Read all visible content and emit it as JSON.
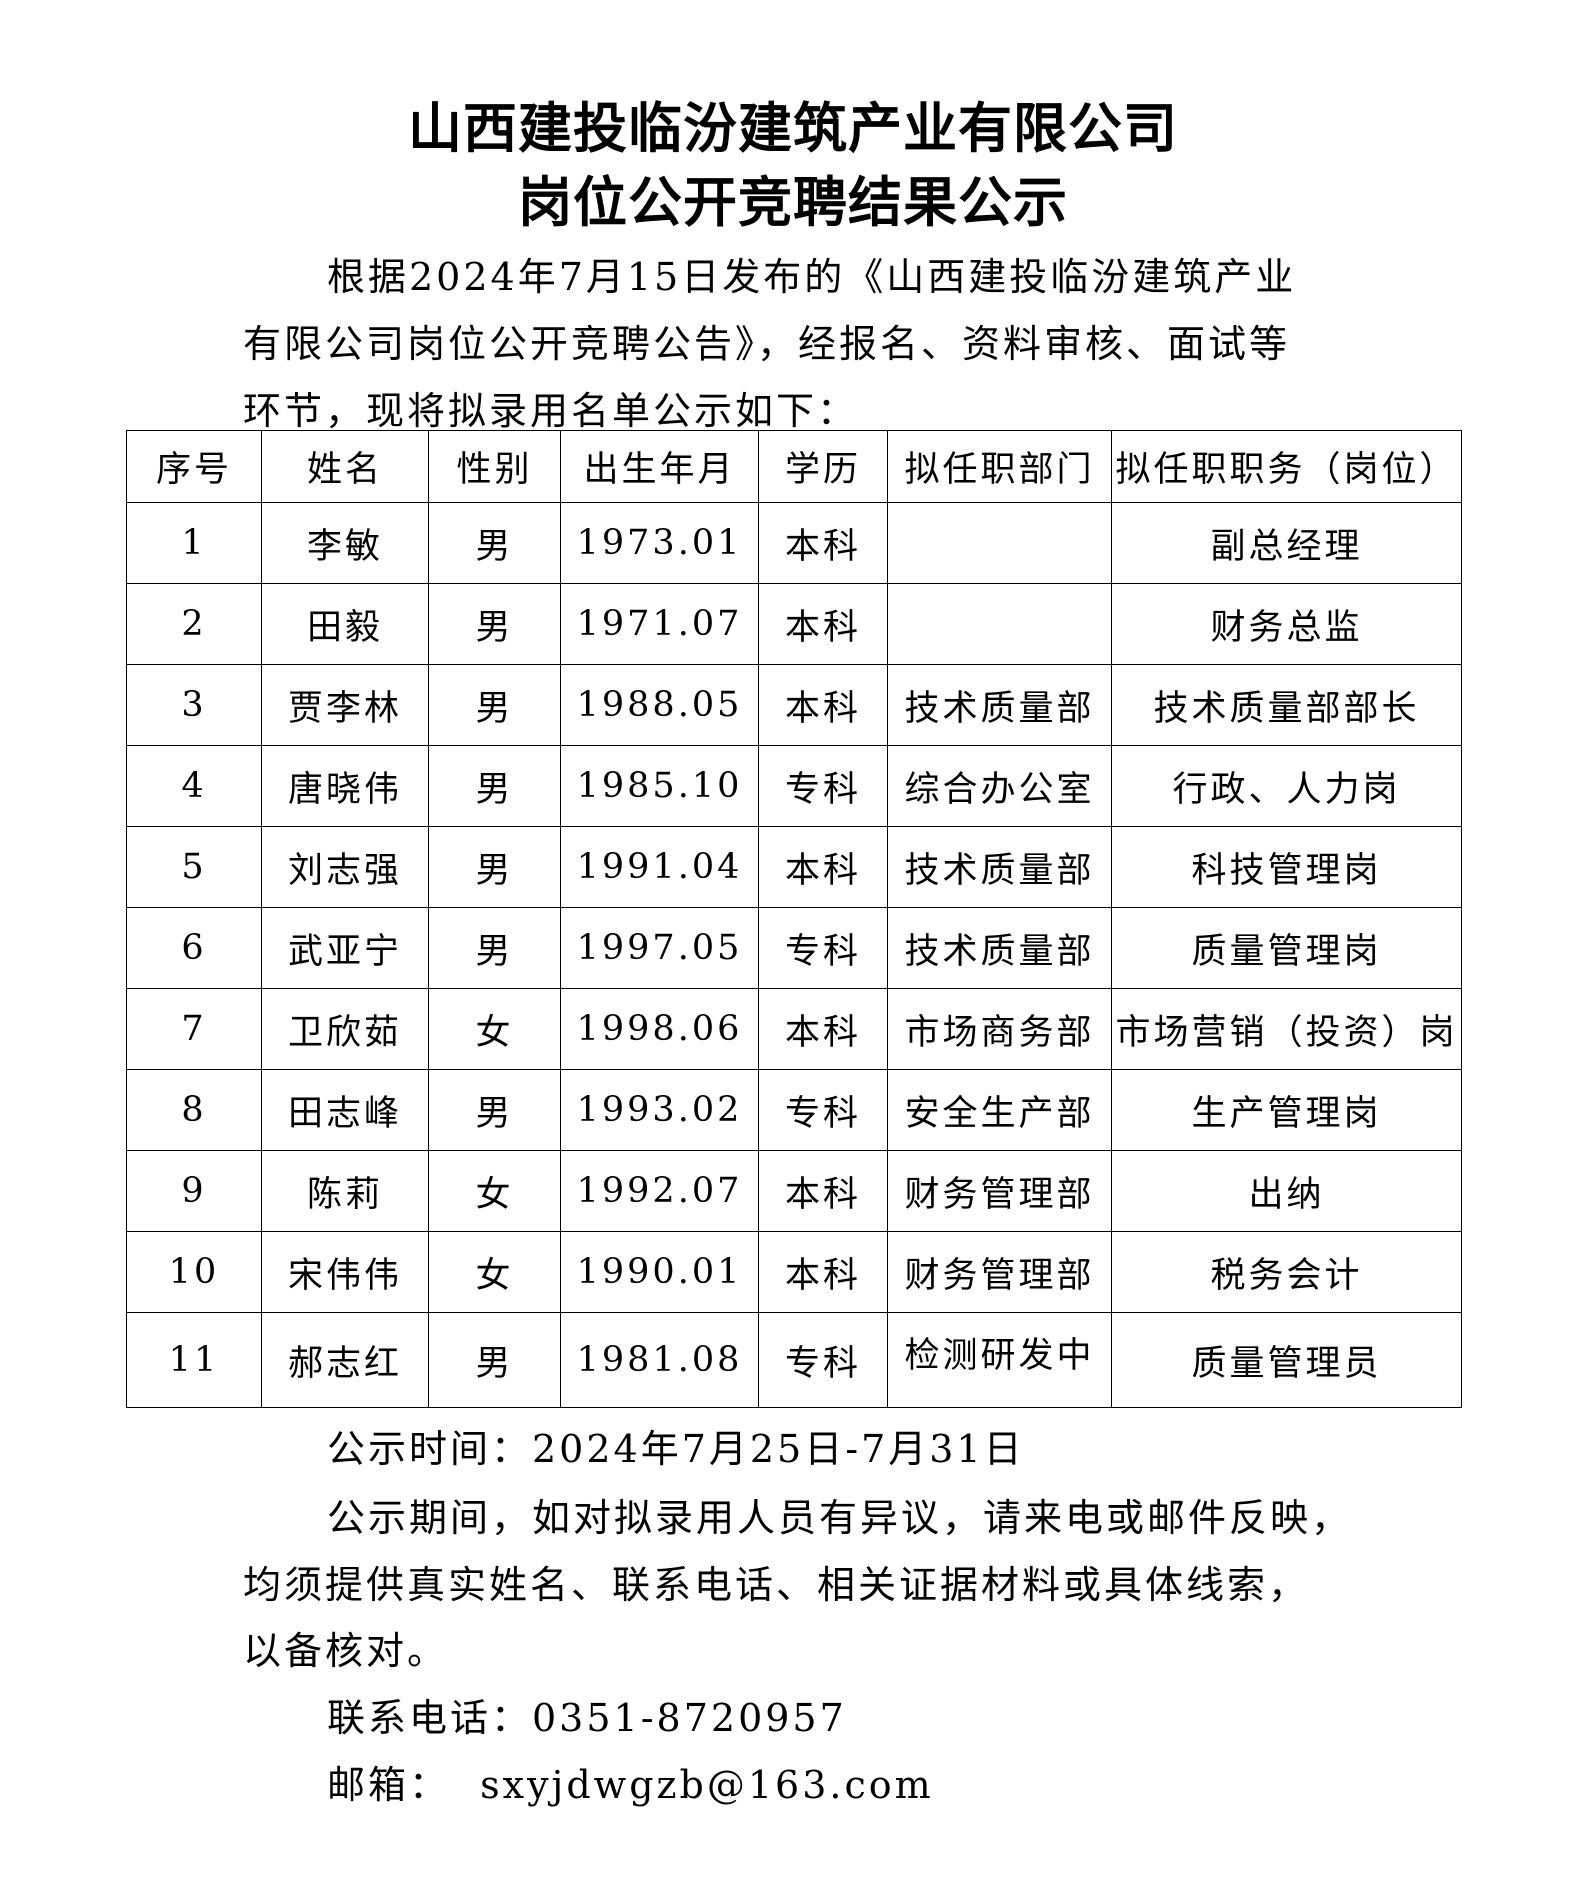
{
  "title": {
    "line1": "山西建投临汾建筑产业有限公司",
    "line2": "岗位公开竞聘结果公示"
  },
  "intro": {
    "line1": "根据2024年7月15日发布的《山西建投临汾建筑产业",
    "line2": "有限公司岗位公开竞聘公告》，经报名、资料审核、面试等",
    "line3": "环节，现将拟录用名单公示如下："
  },
  "table": {
    "headers": [
      "序号",
      "姓名",
      "性别",
      "出生年月",
      "学历",
      "拟任职部门",
      "拟任职职务（岗位）"
    ],
    "rows": [
      [
        "1",
        "李敏",
        "男",
        "1973.01",
        "本科",
        "",
        "副总经理"
      ],
      [
        "2",
        "田毅",
        "男",
        "1971.07",
        "本科",
        "",
        "财务总监"
      ],
      [
        "3",
        "贾李林",
        "男",
        "1988.05",
        "本科",
        "技术质量部",
        "技术质量部部长"
      ],
      [
        "4",
        "唐晓伟",
        "男",
        "1985.10",
        "专科",
        "综合办公室",
        "行政、人力岗"
      ],
      [
        "5",
        "刘志强",
        "男",
        "1991.04",
        "本科",
        "技术质量部",
        "科技管理岗"
      ],
      [
        "6",
        "武亚宁",
        "男",
        "1997.05",
        "专科",
        "技术质量部",
        "质量管理岗"
      ],
      [
        "7",
        "卫欣茹",
        "女",
        "1998.06",
        "本科",
        "市场商务部",
        "市场营销（投资）岗"
      ],
      [
        "8",
        "田志峰",
        "男",
        "1993.02",
        "专科",
        "安全生产部",
        "生产管理岗"
      ],
      [
        "9",
        "陈莉",
        "女",
        "1992.07",
        "本科",
        "财务管理部",
        "出纳"
      ],
      [
        "10",
        "宋伟伟",
        "女",
        "1990.01",
        "本科",
        "财务管理部",
        "税务会计"
      ],
      [
        "11",
        "郝志红",
        "男",
        "1981.08",
        "专科",
        "检测研发中",
        "质量管理员"
      ]
    ]
  },
  "footer": {
    "period": "公示时间：2024年7月25日-7月31日",
    "notice_line1": "公示期间，如对拟录用人员有异议，请来电或邮件反映，",
    "notice_line2": "均须提供真实姓名、联系电话、相关证据材料或具体线索，",
    "notice_line3": "以备核对。",
    "phone": "联系电话：0351-8720957",
    "email": "邮箱：  sxyjdwgzb@163.com"
  }
}
